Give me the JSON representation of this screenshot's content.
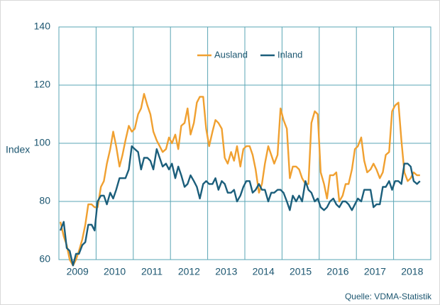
{
  "chart_data": {
    "type": "line",
    "y_label": "Index",
    "source": "Quelle: VDMA-Statistik",
    "ylim": [
      60,
      140
    ],
    "yticks": [
      60,
      80,
      100,
      120,
      140
    ],
    "xlim": [
      2009,
      2019
    ],
    "xticks": [
      {
        "value": 2009.5,
        "label": "2009"
      },
      {
        "value": 2010.5,
        "label": "2010"
      },
      {
        "value": 2011.5,
        "label": "2011"
      },
      {
        "value": 2012.5,
        "label": "2012"
      },
      {
        "value": 2013.5,
        "label": "2013"
      },
      {
        "value": 2014.5,
        "label": "2014"
      },
      {
        "value": 2015.5,
        "label": "2015"
      },
      {
        "value": 2016.5,
        "label": "2016"
      },
      {
        "value": 2017.5,
        "label": "2017"
      },
      {
        "value": 2018.5,
        "label": "2018"
      }
    ],
    "xgrid": [
      2010,
      2011,
      2012,
      2013,
      2014,
      2015,
      2016,
      2017,
      2018
    ],
    "grid": true,
    "legend": "top",
    "x": [
      2009.04,
      2009.13,
      2009.21,
      2009.29,
      2009.38,
      2009.46,
      2009.54,
      2009.63,
      2009.71,
      2009.79,
      2009.88,
      2009.96,
      2010.04,
      2010.13,
      2010.21,
      2010.29,
      2010.38,
      2010.46,
      2010.54,
      2010.63,
      2010.71,
      2010.79,
      2010.88,
      2010.96,
      2011.04,
      2011.13,
      2011.21,
      2011.29,
      2011.38,
      2011.46,
      2011.54,
      2011.63,
      2011.71,
      2011.79,
      2011.88,
      2011.96,
      2012.04,
      2012.13,
      2012.21,
      2012.29,
      2012.38,
      2012.46,
      2012.54,
      2012.63,
      2012.71,
      2012.79,
      2012.88,
      2012.96,
      2013.04,
      2013.13,
      2013.21,
      2013.29,
      2013.38,
      2013.46,
      2013.54,
      2013.63,
      2013.71,
      2013.79,
      2013.88,
      2013.96,
      2014.04,
      2014.13,
      2014.21,
      2014.29,
      2014.38,
      2014.46,
      2014.54,
      2014.63,
      2014.71,
      2014.79,
      2014.88,
      2014.96,
      2015.04,
      2015.13,
      2015.21,
      2015.29,
      2015.38,
      2015.46,
      2015.54,
      2015.63,
      2015.71,
      2015.79,
      2015.88,
      2015.96,
      2016.04,
      2016.13,
      2016.21,
      2016.29,
      2016.38,
      2016.46,
      2016.54,
      2016.63,
      2016.71,
      2016.79,
      2016.88,
      2016.96,
      2017.04,
      2017.13,
      2017.21,
      2017.29,
      2017.38,
      2017.46,
      2017.54,
      2017.63,
      2017.71,
      2017.79,
      2017.88,
      2017.96,
      2018.04,
      2018.13,
      2018.21,
      2018.29,
      2018.38,
      2018.46,
      2018.54,
      2018.63,
      2018.71
    ],
    "series": [
      {
        "name": "Ausland",
        "color": "#f0a030",
        "values": [
          73,
          68,
          65,
          60,
          58,
          60,
          63,
          67,
          72,
          79,
          79,
          78,
          78,
          85,
          87,
          93,
          98,
          104,
          99,
          92,
          96,
          101,
          106,
          104,
          105,
          110,
          112,
          117,
          113,
          110,
          104,
          101,
          99,
          97,
          98,
          102,
          100,
          103,
          98,
          106,
          107,
          112,
          103,
          107,
          114,
          116,
          116,
          105,
          99,
          104,
          108,
          107,
          105,
          95,
          93,
          97,
          94,
          99,
          92,
          98,
          99,
          99,
          96,
          91,
          83,
          86,
          93,
          99,
          96,
          93,
          96,
          112,
          108,
          105,
          88,
          92,
          92,
          91,
          88,
          86,
          86,
          107,
          111,
          110,
          90,
          86,
          81,
          89,
          89,
          90,
          80,
          82,
          86,
          86,
          91,
          98,
          99,
          102,
          94,
          90,
          91,
          93,
          91,
          88,
          90,
          96,
          97,
          111,
          113,
          114,
          101,
          90,
          87,
          88,
          90,
          89,
          89
        ]
      },
      {
        "name": "Inland",
        "color": "#1b5e7b",
        "values": [
          70,
          73,
          64,
          63,
          58,
          62,
          62,
          65,
          66,
          72,
          72,
          70,
          80,
          82,
          82,
          79,
          83,
          81,
          84,
          88,
          88,
          88,
          91,
          99,
          98,
          97,
          91,
          95,
          95,
          94,
          91,
          98,
          95,
          92,
          93,
          91,
          93,
          88,
          92,
          89,
          85,
          86,
          89,
          87,
          85,
          81,
          86,
          87,
          86,
          86,
          88,
          84,
          87,
          86,
          83,
          83,
          84,
          80,
          82,
          85,
          87,
          87,
          83,
          84,
          86,
          84,
          84,
          80,
          83,
          83,
          84,
          84,
          83,
          80,
          77,
          82,
          80,
          82,
          80,
          87,
          84,
          83,
          80,
          81,
          78,
          77,
          78,
          80,
          81,
          79,
          78,
          80,
          80,
          79,
          77,
          79,
          81,
          80,
          84,
          84,
          84,
          78,
          79,
          79,
          85,
          85,
          87,
          84,
          87,
          87,
          86,
          93,
          93,
          92,
          87,
          86,
          87
        ]
      }
    ]
  }
}
